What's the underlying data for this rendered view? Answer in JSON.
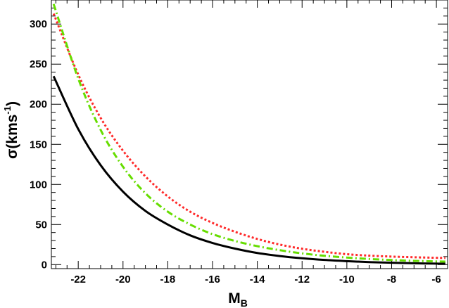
{
  "chart_data": {
    "type": "line",
    "title": "",
    "xlabel": {
      "main": "M",
      "sub": "B"
    },
    "ylabel": {
      "prefix": "σ(kms",
      "sup": "-1",
      "suffix": ")"
    },
    "xlim": [
      -23.2,
      -5.5
    ],
    "ylim": [
      -5,
      330
    ],
    "xticks": [
      -22,
      -20,
      -18,
      -16,
      -14,
      -12,
      -10,
      -8,
      -6
    ],
    "yticks": [
      0,
      50,
      100,
      150,
      200,
      250,
      300
    ],
    "grid": false,
    "series": [
      {
        "color": "#000000",
        "style": "solid",
        "x": [
          -23.1,
          -22,
          -21,
          -20,
          -19,
          -18,
          -17,
          -16,
          -15,
          -14,
          -13,
          -12,
          -11,
          -10,
          -9,
          -8,
          -7,
          -6,
          -5.6
        ],
        "y": [
          235,
          169,
          124,
          91,
          67,
          50,
          36.5,
          27,
          20,
          14.5,
          10.7,
          7.9,
          5.8,
          4.3,
          3.1,
          2.3,
          1.7,
          1.2,
          1.1
        ]
      },
      {
        "color": "#ff2a2a",
        "style": "dotted",
        "x": [
          -23.1,
          -22,
          -21,
          -20,
          -19,
          -18,
          -17,
          -16,
          -15,
          -14,
          -13,
          -12,
          -11,
          -10,
          -9,
          -8,
          -7,
          -6,
          -5.6
        ],
        "y": [
          313,
          237,
          183,
          142,
          110,
          85,
          66,
          52,
          41,
          32,
          25,
          19.8,
          16,
          13,
          11.2,
          10,
          9.2,
          8.5,
          8.3
        ]
      },
      {
        "color": "#66dd00",
        "style": "dashdot",
        "x": [
          -23.1,
          -22,
          -21,
          -20,
          -19,
          -18,
          -17,
          -16,
          -15,
          -14,
          -13,
          -12,
          -11,
          -10,
          -9,
          -8,
          -7,
          -6,
          -5.6
        ],
        "y": [
          325,
          232,
          168,
          122,
          89,
          66,
          50,
          38,
          29.5,
          23,
          18,
          14,
          11,
          8.8,
          7,
          5.7,
          4.7,
          4,
          3.8
        ]
      }
    ]
  }
}
